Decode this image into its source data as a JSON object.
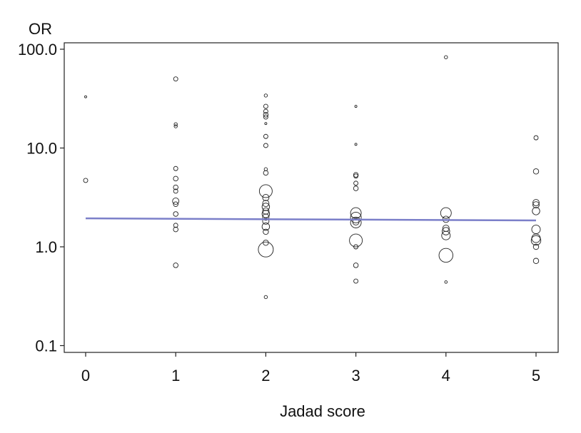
{
  "chart_data": {
    "type": "scatter",
    "subtype": "bubble",
    "title": "",
    "ylabel": "OR",
    "xlabel": "Jadad score",
    "yscale": "log",
    "ylim": [
      0.09,
      130
    ],
    "xlim": [
      -0.25,
      5.4
    ],
    "yticks": [
      0.1,
      1.0,
      10.0,
      100.0
    ],
    "ytick_labels": [
      "0.1",
      "1.0",
      "10.0",
      "100.0"
    ],
    "xticks": [
      0,
      1,
      2,
      3,
      4,
      5
    ],
    "xtick_labels": [
      "0",
      "1",
      "2",
      "3",
      "4",
      "5"
    ],
    "grid": false,
    "legend": "none",
    "marker_color": "#222222",
    "line_color": "#7b7fc9",
    "regression_line": {
      "x": [
        0,
        5
      ],
      "y": [
        1.94,
        1.85
      ]
    },
    "points": [
      {
        "x": 0,
        "y": 33,
        "w": 1
      },
      {
        "x": 0,
        "y": 4.7,
        "w": 2
      },
      {
        "x": 1,
        "y": 50,
        "w": 2
      },
      {
        "x": 1,
        "y": 17.4,
        "w": 1.5
      },
      {
        "x": 1,
        "y": 16.6,
        "w": 1.5
      },
      {
        "x": 1,
        "y": 6.2,
        "w": 2
      },
      {
        "x": 1,
        "y": 4.9,
        "w": 2.2
      },
      {
        "x": 1,
        "y": 4.0,
        "w": 2.2
      },
      {
        "x": 1,
        "y": 3.66,
        "w": 2
      },
      {
        "x": 1,
        "y": 2.9,
        "w": 3
      },
      {
        "x": 1,
        "y": 2.7,
        "w": 2.2
      },
      {
        "x": 1,
        "y": 2.15,
        "w": 2.2
      },
      {
        "x": 1,
        "y": 1.65,
        "w": 2
      },
      {
        "x": 1,
        "y": 1.5,
        "w": 2.2
      },
      {
        "x": 1,
        "y": 0.65,
        "w": 2.2
      },
      {
        "x": 2,
        "y": 34,
        "w": 1.5
      },
      {
        "x": 2,
        "y": 26.4,
        "w": 2
      },
      {
        "x": 2,
        "y": 23.5,
        "w": 2
      },
      {
        "x": 2,
        "y": 21.7,
        "w": 2.2
      },
      {
        "x": 2,
        "y": 20.6,
        "w": 2
      },
      {
        "x": 2,
        "y": 17.7,
        "w": 1
      },
      {
        "x": 2,
        "y": 13.1,
        "w": 2
      },
      {
        "x": 2,
        "y": 10.6,
        "w": 2
      },
      {
        "x": 2,
        "y": 6.1,
        "w": 1.5
      },
      {
        "x": 2,
        "y": 5.6,
        "w": 2.2
      },
      {
        "x": 2,
        "y": 3.66,
        "w": 6
      },
      {
        "x": 2,
        "y": 3.15,
        "w": 3
      },
      {
        "x": 2,
        "y": 2.75,
        "w": 3
      },
      {
        "x": 2,
        "y": 2.54,
        "w": 3.5
      },
      {
        "x": 2,
        "y": 2.3,
        "w": 3
      },
      {
        "x": 2,
        "y": 2.15,
        "w": 3.5
      },
      {
        "x": 2,
        "y": 2.0,
        "w": 3
      },
      {
        "x": 2,
        "y": 1.82,
        "w": 3
      },
      {
        "x": 2,
        "y": 1.6,
        "w": 3.5
      },
      {
        "x": 2,
        "y": 1.42,
        "w": 2.5
      },
      {
        "x": 2,
        "y": 1.1,
        "w": 2.5
      },
      {
        "x": 2,
        "y": 0.94,
        "w": 7
      },
      {
        "x": 2,
        "y": 0.31,
        "w": 1.5
      },
      {
        "x": 3,
        "y": 26.4,
        "w": 1
      },
      {
        "x": 3,
        "y": 10.9,
        "w": 1
      },
      {
        "x": 3,
        "y": 5.35,
        "w": 2.2
      },
      {
        "x": 3,
        "y": 5.2,
        "w": 2
      },
      {
        "x": 3,
        "y": 4.4,
        "w": 2
      },
      {
        "x": 3,
        "y": 3.9,
        "w": 2.2
      },
      {
        "x": 3,
        "y": 2.2,
        "w": 5
      },
      {
        "x": 3,
        "y": 1.98,
        "w": 5
      },
      {
        "x": 3,
        "y": 1.79,
        "w": 3
      },
      {
        "x": 3,
        "y": 1.76,
        "w": 5
      },
      {
        "x": 3,
        "y": 1.16,
        "w": 6
      },
      {
        "x": 3,
        "y": 1.0,
        "w": 2
      },
      {
        "x": 3,
        "y": 0.65,
        "w": 2.2
      },
      {
        "x": 3,
        "y": 0.45,
        "w": 2
      },
      {
        "x": 4,
        "y": 83,
        "w": 1.5
      },
      {
        "x": 4,
        "y": 2.2,
        "w": 5
      },
      {
        "x": 4,
        "y": 1.9,
        "w": 3
      },
      {
        "x": 4,
        "y": 1.54,
        "w": 3
      },
      {
        "x": 4,
        "y": 1.44,
        "w": 3.5
      },
      {
        "x": 4,
        "y": 1.3,
        "w": 4
      },
      {
        "x": 4,
        "y": 0.82,
        "w": 6.5
      },
      {
        "x": 4,
        "y": 0.44,
        "w": 1.2
      },
      {
        "x": 5,
        "y": 12.7,
        "w": 2
      },
      {
        "x": 5,
        "y": 5.8,
        "w": 2.5
      },
      {
        "x": 5,
        "y": 2.8,
        "w": 3
      },
      {
        "x": 5,
        "y": 2.66,
        "w": 3
      },
      {
        "x": 5,
        "y": 2.3,
        "w": 3.5
      },
      {
        "x": 5,
        "y": 1.5,
        "w": 4
      },
      {
        "x": 5,
        "y": 1.22,
        "w": 4
      },
      {
        "x": 5,
        "y": 1.16,
        "w": 4.5
      },
      {
        "x": 5,
        "y": 1.0,
        "w": 2.5
      },
      {
        "x": 5,
        "y": 0.72,
        "w": 2.5
      }
    ]
  }
}
